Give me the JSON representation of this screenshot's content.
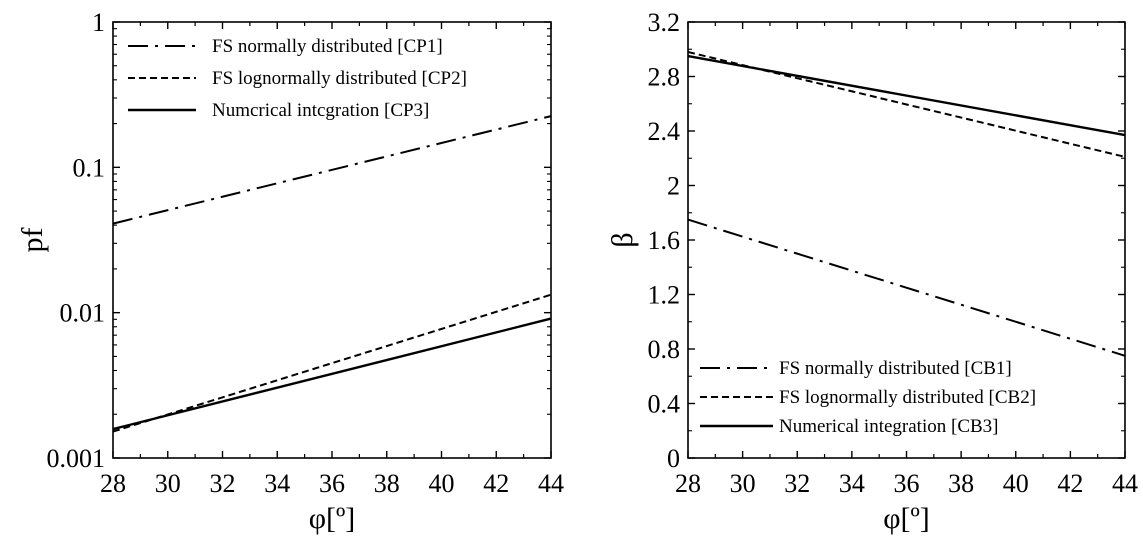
{
  "chart_data": [
    {
      "type": "line",
      "xlabel": "φ[º]",
      "ylabel": "pf",
      "yscale": "log",
      "xlim": [
        28,
        44
      ],
      "ylim": [
        0.001,
        1
      ],
      "xticks": [
        "28",
        "30",
        "32",
        "34",
        "36",
        "38",
        "40",
        "42",
        "44"
      ],
      "yticks": [
        {
          "value": 0.001,
          "label": "0.001"
        },
        {
          "value": 0.01,
          "label": "0.01"
        },
        {
          "value": 0.1,
          "label": "0.1"
        },
        {
          "value": 1,
          "label": "1"
        }
      ],
      "grid": false,
      "legend_position": "top-left",
      "series": [
        {
          "name": "FS normally distributed [CP1]",
          "style": "dashdot",
          "points": [
            [
              28,
              0.041
            ],
            [
              44,
              0.225
            ]
          ]
        },
        {
          "name": "FS lognormally distributed [CP2]",
          "style": "dotted",
          "points": [
            [
              28,
              0.00152
            ],
            [
              44,
              0.0133
            ]
          ]
        },
        {
          "name": "Numcrical intcgration [CP3]",
          "style": "solid",
          "points": [
            [
              28,
              0.00158
            ],
            [
              44,
              0.0091
            ]
          ]
        }
      ]
    },
    {
      "type": "line",
      "xlabel": "φ[º]",
      "ylabel": "β",
      "yscale": "linear",
      "xlim": [
        28,
        44
      ],
      "ylim": [
        0,
        3.2
      ],
      "xticks": [
        "28",
        "30",
        "32",
        "34",
        "36",
        "38",
        "40",
        "42",
        "44"
      ],
      "yticks": [
        {
          "value": 0,
          "label": "0"
        },
        {
          "value": 0.4,
          "label": "0.4"
        },
        {
          "value": 0.8,
          "label": "0.8"
        },
        {
          "value": 1.2,
          "label": "1.2"
        },
        {
          "value": 1.6,
          "label": "1.6"
        },
        {
          "value": 2,
          "label": "2"
        },
        {
          "value": 2.4,
          "label": "2.4"
        },
        {
          "value": 2.8,
          "label": "2.8"
        },
        {
          "value": 3.2,
          "label": "3.2"
        }
      ],
      "grid": false,
      "legend_position": "bottom-left",
      "series": [
        {
          "name": "FS normally distributed [CB1]",
          "style": "dashdot",
          "points": [
            [
              28,
              1.75
            ],
            [
              44,
              0.75
            ]
          ]
        },
        {
          "name": "FS lognormally distributed [CB2]",
          "style": "dotted",
          "points": [
            [
              28,
              2.98
            ],
            [
              44,
              2.21
            ]
          ]
        },
        {
          "name": "Numerical integration [CB3]",
          "style": "solid",
          "points": [
            [
              28,
              2.95
            ],
            [
              44,
              2.37
            ]
          ]
        }
      ]
    }
  ]
}
